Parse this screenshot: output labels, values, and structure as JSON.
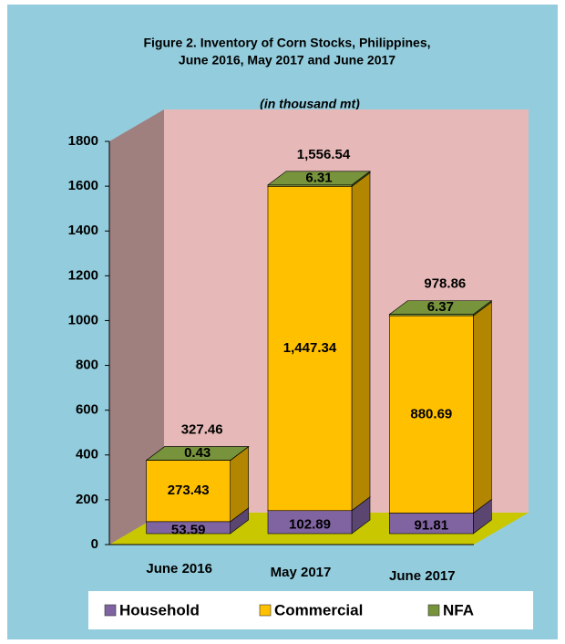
{
  "chart_data": {
    "type": "stacked_bar_3d",
    "title": [
      "Figure 2. Inventory of Corn Stocks, Philippines,",
      "June 2016, May 2017 and June 2017"
    ],
    "subtitle": "(in thousand mt)",
    "categories": [
      "June 2016",
      "May 2017",
      "June 2017"
    ],
    "series": [
      {
        "name": "Household",
        "color": "#8064a2",
        "values": [
          53.59,
          102.89,
          91.81
        ],
        "value_labels": [
          "53.59",
          "102.89",
          "91.81"
        ]
      },
      {
        "name": "Commercial",
        "color": "#ffc000",
        "values": [
          273.43,
          1447.34,
          880.69
        ],
        "value_labels": [
          "273.43",
          "1,447.34",
          "880.69"
        ]
      },
      {
        "name": "NFA",
        "color": "#77933c",
        "values": [
          0.43,
          6.31,
          6.37
        ],
        "value_labels": [
          "0.43",
          "6.31",
          "6.37"
        ]
      }
    ],
    "totals": [
      327.46,
      1556.54,
      978.86
    ],
    "total_labels": [
      "327.46",
      "1,556.54",
      "978.86"
    ],
    "ylim": [
      0,
      1800
    ],
    "yticks": [
      0,
      200,
      400,
      600,
      800,
      1000,
      1200,
      1400,
      1600,
      1800
    ]
  }
}
